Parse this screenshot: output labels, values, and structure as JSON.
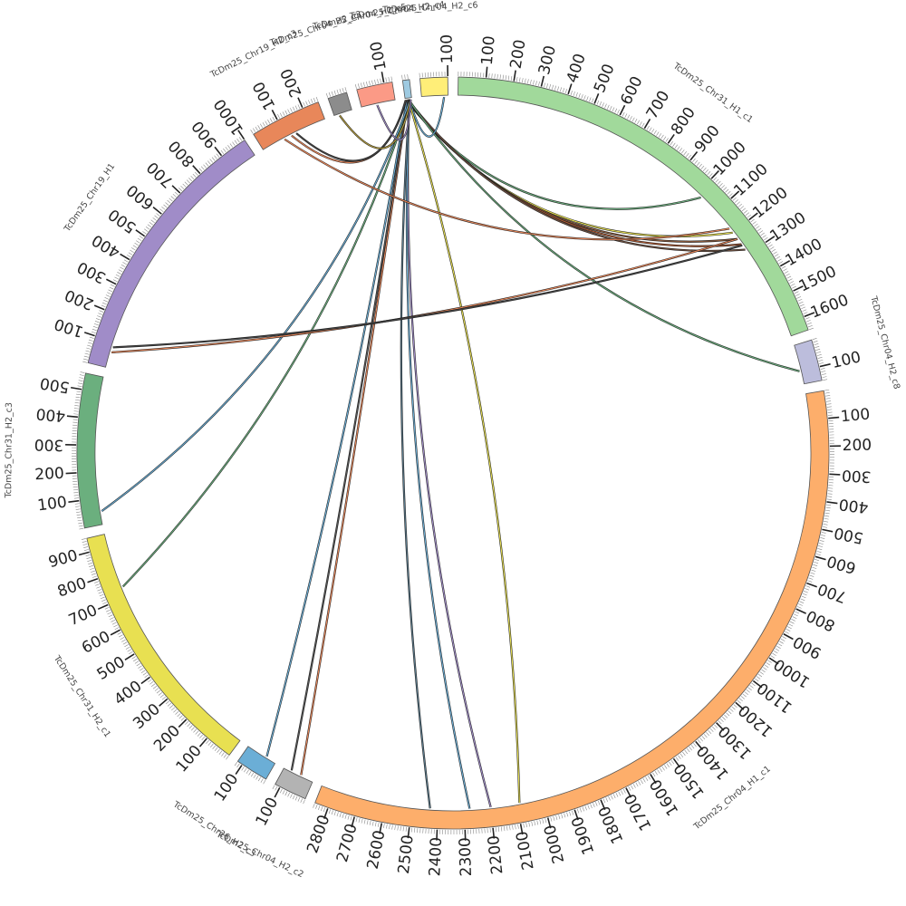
{
  "chart_data": {
    "type": "chord",
    "title": "",
    "segments": [
      {
        "name": "TcDm25_Chr31_H1_c1",
        "length": 1650,
        "color": "#a1d99b",
        "tick_step": 100
      },
      {
        "name": "TcDm25_Chr04_H2_c8",
        "length": 150,
        "color": "#bcbddc",
        "tick_step": 100
      },
      {
        "name": "TcDm25_Chr04_H1_c1",
        "length": 2850,
        "color": "#fdae6b",
        "tick_step": 100
      },
      {
        "name": "TcDm25_Chr04_H2_c2",
        "length": 120,
        "color": "#b3b3b3",
        "tick_step": 100
      },
      {
        "name": "TcDm25_Chr26_H2_c3",
        "length": 120,
        "color": "#6baed6",
        "tick_step": 100
      },
      {
        "name": "TcDm25_Chr31_H2_c1",
        "length": 950,
        "color": "#e8e051",
        "tick_step": 100
      },
      {
        "name": "TcDm25_Chr31_H2_c3",
        "length": 560,
        "color": "#6baf7e",
        "tick_step": 100
      },
      {
        "name": "TcDm25_Chr19_H1",
        "length": 1000,
        "color": "#a08cc8",
        "tick_step": 100
      },
      {
        "name": "TcDm25_Chr19_H2_c3",
        "length": 260,
        "color": "#e8875a",
        "tick_step": 100
      },
      {
        "name": "TcDm25_Chr04_H2_c3",
        "length": 70,
        "color": "#8c8c8c",
        "tick_step": 100
      },
      {
        "name": "TcDm25_Chr04_H2_c5",
        "length": 130,
        "color": "#fb9a86",
        "tick_step": 100
      },
      {
        "name": "TcDm25_Chr04_H2_c4",
        "length": 25,
        "color": "#9ecae1",
        "tick_step": 100
      },
      {
        "name": "TcDm25_Chr04_H2_c6",
        "length": 100,
        "color": "#ffee78",
        "tick_step": 100
      }
    ],
    "links": [
      {
        "source": "TcDm25_Chr04_H2_c4",
        "source_pos": 3,
        "target": "TcDm25_Chr31_H1_c1",
        "target_pos": 1020,
        "color": "#6baf7e"
      },
      {
        "source": "TcDm25_Chr04_H2_c4",
        "source_pos": 5,
        "target": "TcDm25_Chr31_H1_c1",
        "target_pos": 1200,
        "color": "#e8e051"
      },
      {
        "source": "TcDm25_Chr04_H2_c4",
        "source_pos": 7,
        "target": "TcDm25_Chr31_H1_c1",
        "target_pos": 1230,
        "color": "#8a5a3c"
      },
      {
        "source": "TcDm25_Chr04_H2_c4",
        "source_pos": 9,
        "target": "TcDm25_Chr31_H1_c1",
        "target_pos": 1255,
        "color": "#b05a32"
      },
      {
        "source": "TcDm25_Chr04_H2_c4",
        "source_pos": 11,
        "target": "TcDm25_Chr31_H1_c1",
        "target_pos": 1280,
        "color": "#6e5040"
      },
      {
        "source": "TcDm25_Chr04_H2_c4",
        "source_pos": 13,
        "target": "TcDm25_Chr04_H2_c8",
        "target_pos": 100,
        "color": "#6baf7e"
      },
      {
        "source": "TcDm25_Chr04_H2_c4",
        "source_pos": 15,
        "target": "TcDm25_Chr04_H2_c6",
        "target_pos": 85,
        "color": "#6baed6"
      },
      {
        "source": "TcDm25_Chr04_H2_c4",
        "source_pos": 12,
        "target": "TcDm25_Chr04_H1_c1",
        "target_pos": 2090,
        "color": "#e8e051"
      },
      {
        "source": "TcDm25_Chr04_H2_c4",
        "source_pos": 14,
        "target": "TcDm25_Chr04_H1_c1",
        "target_pos": 2200,
        "color": "#a08cc8"
      },
      {
        "source": "TcDm25_Chr04_H2_c4",
        "source_pos": 16,
        "target": "TcDm25_Chr04_H1_c1",
        "target_pos": 2280,
        "color": "#6baed6"
      },
      {
        "source": "TcDm25_Chr04_H2_c4",
        "source_pos": 17,
        "target": "TcDm25_Chr04_H1_c1",
        "target_pos": 2430,
        "color": "#5a7a8c"
      },
      {
        "source": "TcDm25_Chr04_H2_c4",
        "source_pos": 10,
        "target": "TcDm25_Chr04_H2_c2",
        "target_pos": 50,
        "color": "#e8875a"
      },
      {
        "source": "TcDm25_Chr04_H2_c4",
        "source_pos": 8,
        "target": "TcDm25_Chr04_H2_c2",
        "target_pos": 90,
        "color": "#555555"
      },
      {
        "source": "TcDm25_Chr04_H2_c4",
        "source_pos": 6,
        "target": "TcDm25_Chr26_H2_c3",
        "target_pos": 40,
        "color": "#6baed6"
      },
      {
        "source": "TcDm25_Chr04_H2_c4",
        "source_pos": 18,
        "target": "TcDm25_Chr31_H2_c1",
        "target_pos": 740,
        "color": "#6baf7e"
      },
      {
        "source": "TcDm25_Chr04_H2_c4",
        "source_pos": 19,
        "target": "TcDm25_Chr31_H2_c3",
        "target_pos": 50,
        "color": "#6baed6"
      },
      {
        "source": "TcDm25_Chr04_H2_c4",
        "source_pos": 4,
        "target": "TcDm25_Chr19_H2_c3",
        "target_pos": 120,
        "color": "#e8875a"
      },
      {
        "source": "TcDm25_Chr04_H2_c4",
        "source_pos": 2,
        "target": "TcDm25_Chr19_H2_c3",
        "target_pos": 140,
        "color": "#444444"
      },
      {
        "source": "TcDm25_Chr04_H2_c4",
        "source_pos": 20,
        "target": "TcDm25_Chr04_H2_c3",
        "target_pos": 20,
        "color": "#b8a040"
      },
      {
        "source": "TcDm25_Chr04_H2_c4",
        "source_pos": 21,
        "target": "TcDm25_Chr04_H2_c5",
        "target_pos": 60,
        "color": "#a08cc8"
      },
      {
        "source": "TcDm25_Chr19_H2_c3",
        "source_pos": 90,
        "target": "TcDm25_Chr31_H1_c1",
        "target_pos": 1180,
        "color": "#e8875a"
      },
      {
        "source": "TcDm25_Chr19_H1",
        "source_pos": 60,
        "target": "TcDm25_Chr31_H1_c1",
        "target_pos": 1230,
        "color": "#e8875a"
      },
      {
        "source": "TcDm25_Chr19_H1",
        "source_pos": 80,
        "target": "TcDm25_Chr31_H1_c1",
        "target_pos": 1260,
        "color": "#444444"
      }
    ]
  }
}
